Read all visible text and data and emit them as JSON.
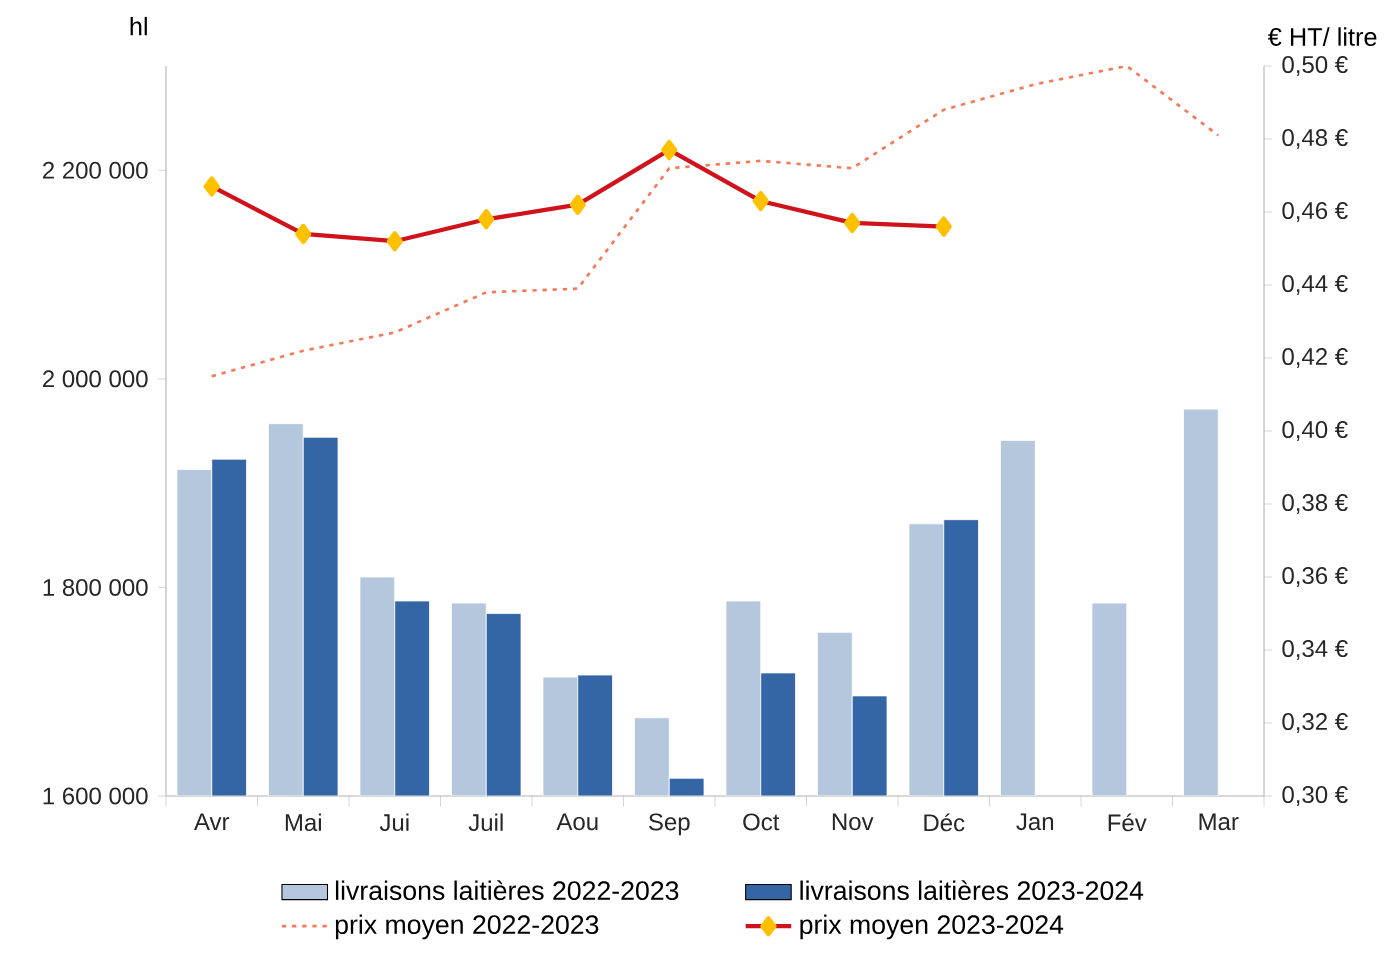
{
  "chart_data": {
    "type": "bar",
    "ylabel": "hl",
    "y2label": "€ HT/ litre",
    "categories": [
      "Avr",
      "Mai",
      "Jui",
      "Juil",
      "Aou",
      "Sep",
      "Oct",
      "Nov",
      "Déc",
      "Jan",
      "Fév",
      "Mar"
    ],
    "series": [
      {
        "name": "livraisons laitières 2022-2023",
        "color": "#b4c7dd",
        "values": [
          1913000,
          1957000,
          1810000,
          1785000,
          1714000,
          1675000,
          1787000,
          1757000,
          1861000,
          1941000,
          1785000,
          1971000
        ]
      },
      {
        "name": "livraisons laitières 2023-2024",
        "color": "#3465a4",
        "values": [
          1923000,
          1944000,
          1787000,
          1775000,
          1716000,
          1617000,
          1718000,
          1696000,
          1865000,
          null,
          null,
          null
        ]
      },
      {
        "name": "prix moyen 2022-2023",
        "type": "line",
        "axis": "y2",
        "color": "#f47a5a",
        "line_style": "dotted",
        "values": [
          0.415,
          0.422,
          0.427,
          0.438,
          0.439,
          0.472,
          0.474,
          0.472,
          0.488,
          0.495,
          0.5,
          0.481
        ]
      },
      {
        "name": "prix moyen 2023-2024",
        "type": "line",
        "axis": "y2",
        "color": "#d0121b",
        "marker": "diamond",
        "line_style": "solid",
        "values": [
          0.467,
          0.454,
          0.452,
          0.458,
          0.462,
          0.477,
          0.463,
          0.457,
          0.456,
          null,
          null,
          null
        ]
      }
    ],
    "ylim": [
      1600000,
      2300000
    ],
    "yticks": [
      {
        "value": 1600000,
        "label": "1 600 000"
      },
      {
        "value": 1800000,
        "label": "1 800 000"
      },
      {
        "value": 2000000,
        "label": "2 000 000"
      },
      {
        "value": 2200000,
        "label": "2 200 000"
      }
    ],
    "y2lim": [
      0.3,
      0.5
    ],
    "y2ticks": [
      {
        "value": 0.3,
        "label": "0,30 €"
      },
      {
        "value": 0.32,
        "label": "0,32 €"
      },
      {
        "value": 0.34,
        "label": "0,34 €"
      },
      {
        "value": 0.36,
        "label": "0,36 €"
      },
      {
        "value": 0.38,
        "label": "0,38 €"
      },
      {
        "value": 0.4,
        "label": "0,40 €"
      },
      {
        "value": 0.42,
        "label": "0,42 €"
      },
      {
        "value": 0.44,
        "label": "0,44 €"
      },
      {
        "value": 0.46,
        "label": "0,46 €"
      },
      {
        "value": 0.48,
        "label": "0,48 €"
      },
      {
        "value": 0.5,
        "label": "0,50 €"
      }
    ],
    "grid": false,
    "legend": "bottom"
  }
}
